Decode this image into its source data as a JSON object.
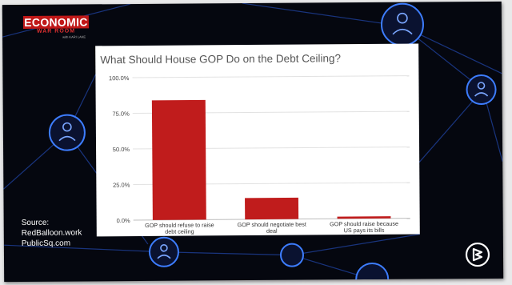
{
  "logo": {
    "line1": "ECONOMIC",
    "line2": "WAR ROOM",
    "line3": "with KARI LAKE"
  },
  "source": {
    "label": "Source:",
    "lines": [
      "RedBalloon.work",
      "PublicSq.com"
    ]
  },
  "icons": {
    "network_bg": "network-people-icon",
    "brand": "rumble-logo-icon"
  },
  "colors": {
    "bar": "#c01c1c",
    "background": "#05070f",
    "network": "#2a6cff"
  },
  "chart_data": {
    "type": "bar",
    "title": "What Should House GOP Do on the Debt Ceiling?",
    "categories": [
      [
        "GOP should refuse to raise",
        "debt ceiling"
      ],
      [
        "GOP should negotiate best",
        "deal"
      ],
      [
        "GOP should raise because",
        "US pays its bills"
      ]
    ],
    "values": [
      84,
      15,
      1.5
    ],
    "ylim": [
      0,
      100
    ],
    "yticks": [
      0,
      25,
      50,
      75,
      100
    ],
    "ytick_labels": [
      "0.0%",
      "25.0%",
      "50.0%",
      "75.0%",
      "100.0%"
    ],
    "grid": true,
    "xlabel": "",
    "ylabel": ""
  }
}
